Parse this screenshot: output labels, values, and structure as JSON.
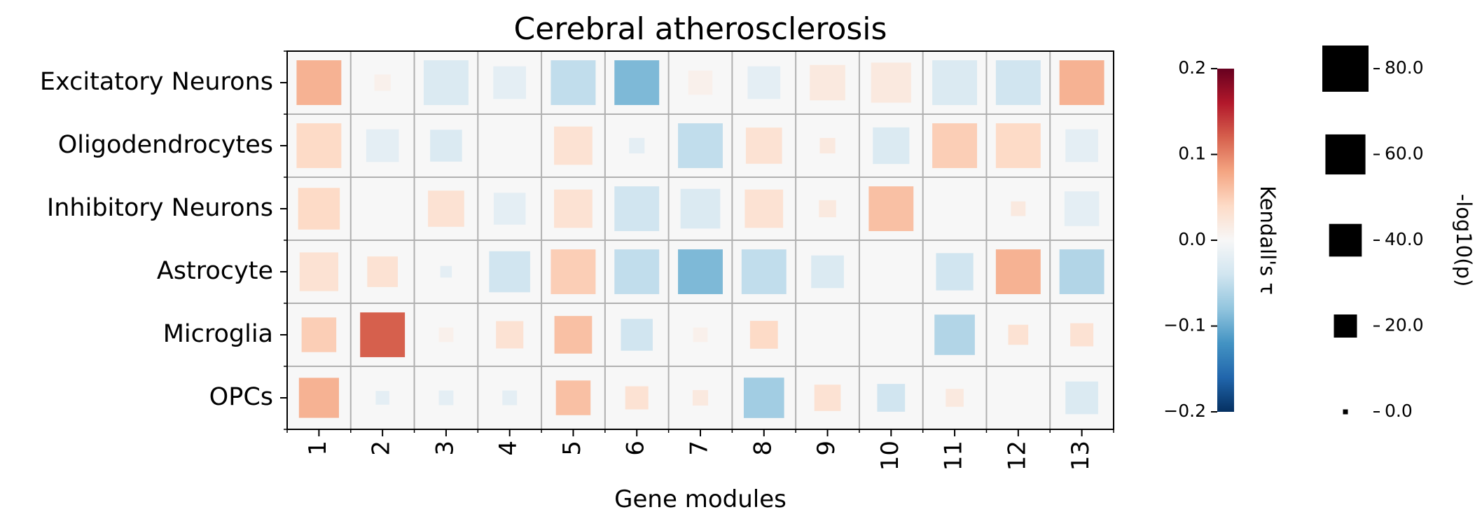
{
  "chart_data": {
    "type": "heatmap",
    "title": "Cerebral atherosclerosis",
    "xlabel": "Gene modules",
    "ylabel": "",
    "x_categories": [
      "1",
      "2",
      "3",
      "4",
      "5",
      "6",
      "7",
      "8",
      "9",
      "10",
      "11",
      "12",
      "13"
    ],
    "y_categories": [
      "Excitatory Neurons",
      "Oligodendrocytes",
      "Inhibitory Neurons",
      "Astrocyte",
      "Microglia",
      "OPCs"
    ],
    "grid": true,
    "color_encoding": {
      "label": "Kendall's τ",
      "colormap": "RdBu_r",
      "range": [
        -0.2,
        0.2
      ],
      "ticks": [
        0.2,
        0.1,
        0.0,
        -0.1,
        -0.2
      ],
      "tick_labels": [
        "0.2",
        "0.1",
        "0.0",
        "−0.1",
        "−0.2"
      ]
    },
    "size_encoding": {
      "label": "-log10(p)",
      "range": [
        0,
        80
      ],
      "ticks": [
        80,
        60,
        40,
        20,
        0
      ],
      "tick_labels": [
        "80.0",
        "60.0",
        "40.0",
        "20.0",
        "0.0"
      ]
    },
    "tau": [
      [
        0.07,
        0.01,
        -0.03,
        -0.02,
        -0.05,
        -0.09,
        0.01,
        -0.02,
        0.02,
        0.02,
        -0.03,
        -0.04,
        0.07
      ],
      [
        0.04,
        -0.02,
        -0.03,
        0.0,
        0.03,
        -0.02,
        -0.05,
        0.03,
        0.02,
        -0.03,
        0.05,
        0.04,
        -0.02
      ],
      [
        0.04,
        0.0,
        0.03,
        -0.02,
        0.03,
        -0.04,
        -0.03,
        0.03,
        0.02,
        0.06,
        0.0,
        0.02,
        -0.02
      ],
      [
        0.03,
        0.03,
        -0.02,
        -0.04,
        0.05,
        -0.05,
        -0.09,
        -0.05,
        -0.03,
        0.0,
        -0.04,
        0.07,
        -0.06
      ],
      [
        0.05,
        0.12,
        0.01,
        0.03,
        0.06,
        -0.04,
        0.01,
        0.04,
        0.0,
        0.0,
        -0.06,
        0.03,
        0.03
      ],
      [
        0.07,
        -0.02,
        -0.02,
        -0.02,
        0.06,
        0.03,
        0.02,
        -0.07,
        0.03,
        -0.04,
        0.02,
        0.0,
        -0.03
      ]
    ],
    "neg_log10_p": [
      [
        75,
        10,
        75,
        40,
        75,
        75,
        22,
        40,
        47,
        60,
        75,
        75,
        75
      ],
      [
        75,
        40,
        38,
        0,
        55,
        9,
        75,
        49,
        9,
        50,
        75,
        75,
        40
      ],
      [
        65,
        0,
        49,
        38,
        55,
        75,
        59,
        55,
        11,
        75,
        6,
        8,
        45
      ],
      [
        56,
        35,
        5,
        63,
        75,
        75,
        75,
        75,
        40,
        3,
        52,
        75,
        75
      ],
      [
        45,
        75,
        8,
        28,
        53,
        38,
        8,
        29,
        0,
        0,
        61,
        15,
        20
      ],
      [
        60,
        7,
        8,
        8,
        45,
        20,
        9,
        61,
        26,
        29,
        12,
        0,
        40
      ]
    ]
  }
}
